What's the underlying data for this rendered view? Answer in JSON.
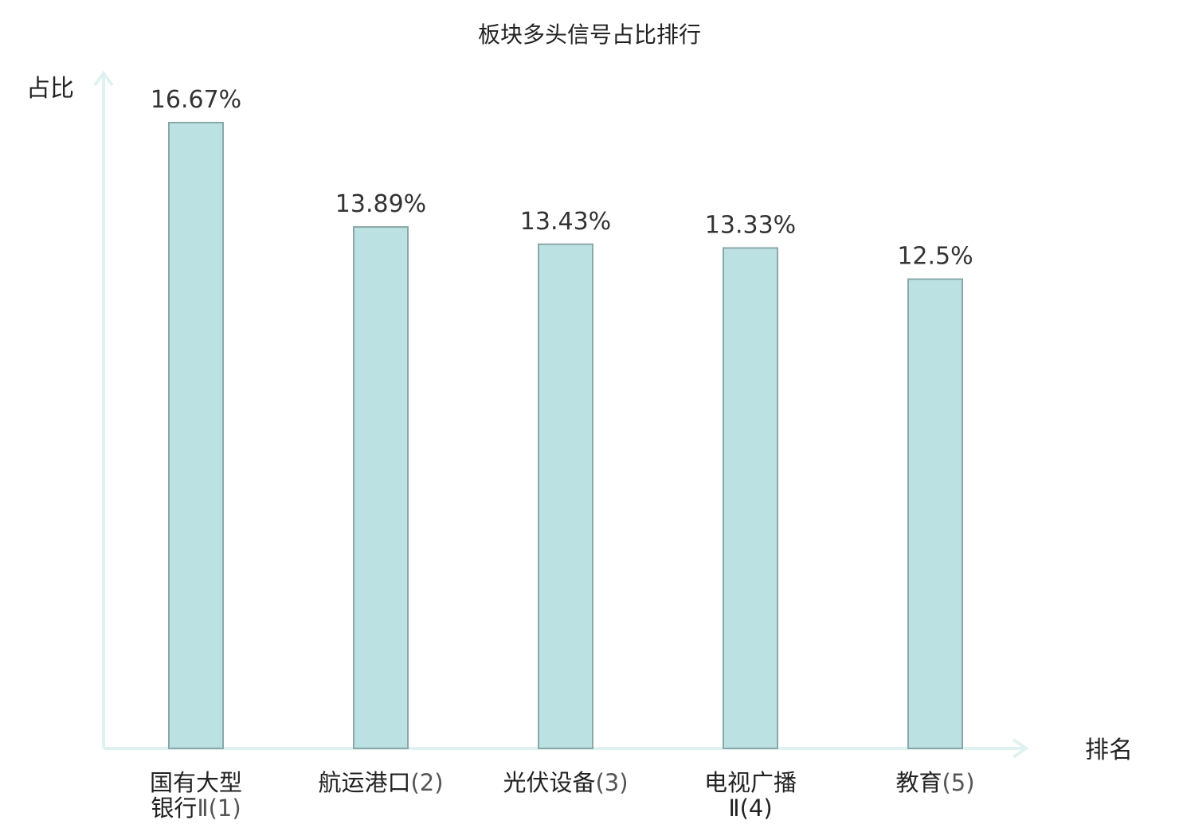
{
  "chart_data": {
    "type": "bar",
    "title": "板块多头信号占比排行",
    "ylabel": "占比",
    "xlabel": "排名",
    "ylim": [
      0,
      16.67
    ],
    "grid": false,
    "categories": [
      {
        "lines": [
          {
            "main": "国有大型",
            "suffix": ""
          },
          {
            "main": "银行",
            "suffix": "Ⅱ(1)"
          }
        ],
        "highlight": false
      },
      {
        "lines": [
          {
            "main": "航运港口",
            "suffix": "(2)"
          }
        ],
        "highlight": false
      },
      {
        "lines": [
          {
            "main": "光伏设备",
            "suffix": "(3)"
          }
        ],
        "highlight": false
      },
      {
        "lines": [
          {
            "main": "电视广播",
            "suffix": ""
          },
          {
            "main": "",
            "suffix": "Ⅱ(4)"
          }
        ],
        "highlight": true
      },
      {
        "lines": [
          {
            "main": "教育",
            "suffix": "(5)"
          }
        ],
        "highlight": false
      }
    ],
    "values": [
      16.67,
      13.89,
      13.43,
      13.33,
      12.5
    ],
    "value_labels": [
      "16.67%",
      "13.89%",
      "13.43%",
      "13.33%",
      "12.5%"
    ],
    "colors": {
      "bar_fill": "#bce1e3",
      "bar_stroke": "#8aa8a8",
      "axis": "#dff2ef",
      "highlight_text": "#e8161b",
      "text": "#222222"
    }
  }
}
